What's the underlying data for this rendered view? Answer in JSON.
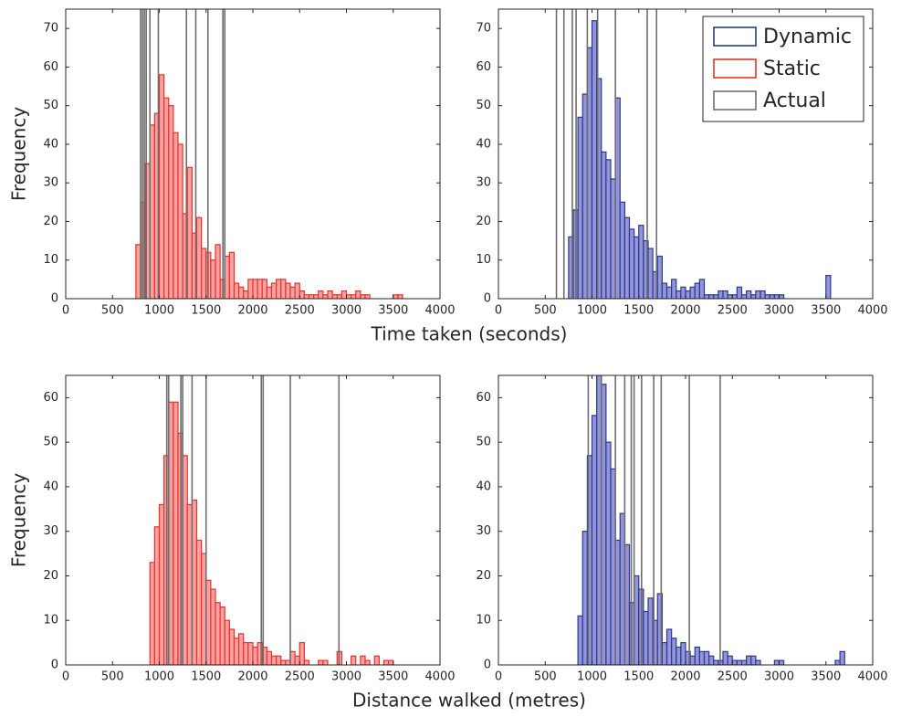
{
  "chart_data": [
    {
      "type": "histogram",
      "ylabel": "Frequency",
      "xlabel": "Time taken (seconds)",
      "xlim": [
        0,
        4000
      ],
      "xticks": [
        0,
        500,
        1000,
        1500,
        2000,
        2500,
        3000,
        3500,
        4000
      ],
      "ylim": [
        0,
        75
      ],
      "yticks": [
        0,
        10,
        20,
        30,
        40,
        50,
        60,
        70
      ],
      "bins": [
        750,
        800,
        850,
        900,
        950,
        1000,
        1050,
        1100,
        1150,
        1200,
        1250,
        1300,
        1350,
        1400,
        1450,
        1500,
        1550,
        1600,
        1650,
        1700,
        1750,
        1800,
        1850,
        1900,
        1950,
        2000,
        2050,
        2100,
        2150,
        2200,
        2250,
        2300,
        2350,
        2400,
        2450,
        2500,
        2550,
        2600,
        2650,
        2700,
        2750,
        2800,
        2850,
        2900,
        2950,
        3000,
        3050,
        3100,
        3150,
        3200,
        3250,
        3300,
        3350,
        3400,
        3450,
        3500,
        3550,
        3600
      ],
      "hist": {
        "color": "#e8322a",
        "fill": "#ff9b9b",
        "values": [
          14,
          25,
          35,
          45,
          48,
          58,
          52,
          50,
          43,
          40,
          22,
          34,
          17,
          21,
          13,
          12,
          10,
          14,
          5,
          11,
          12,
          4,
          3,
          2,
          5,
          5,
          5,
          5,
          3,
          4,
          5,
          5,
          4,
          3,
          4,
          2,
          1,
          1,
          1,
          2,
          1,
          2,
          1,
          1,
          2,
          1,
          1,
          2,
          1,
          1,
          0,
          0,
          0,
          0,
          0,
          1,
          1
        ]
      },
      "actual": {
        "color": "#6e6e6e",
        "values": [
          800,
          820,
          840,
          860,
          900,
          990,
          1290,
          1390,
          1520,
          1680,
          1700
        ]
      }
    },
    {
      "type": "histogram",
      "xlim": [
        0,
        4000
      ],
      "xticks": [
        0,
        500,
        1000,
        1500,
        2000,
        2500,
        3000,
        3500,
        4000
      ],
      "ylim": [
        0,
        75
      ],
      "yticks": [
        0,
        10,
        20,
        30,
        40,
        50,
        60,
        70
      ],
      "bins": [
        750,
        800,
        850,
        900,
        950,
        1000,
        1050,
        1100,
        1150,
        1200,
        1250,
        1300,
        1350,
        1400,
        1450,
        1500,
        1550,
        1600,
        1650,
        1700,
        1750,
        1800,
        1850,
        1900,
        1950,
        2000,
        2050,
        2100,
        2150,
        2200,
        2250,
        2300,
        2350,
        2400,
        2450,
        2500,
        2550,
        2600,
        2650,
        2700,
        2750,
        2800,
        2850,
        2900,
        2950,
        3000,
        3050,
        3100,
        3150,
        3200,
        3250,
        3300,
        3350,
        3400,
        3450,
        3500,
        3550,
        3600
      ],
      "hist": {
        "color": "#2b3a8f",
        "fill": "#8e8ed8",
        "values": [
          16,
          23,
          47,
          53,
          65,
          72,
          57,
          38,
          36,
          31,
          52,
          25,
          21,
          18,
          16,
          19,
          15,
          13,
          7,
          11,
          4,
          3,
          5,
          2,
          3,
          2,
          3,
          4,
          5,
          1,
          1,
          1,
          2,
          2,
          1,
          1,
          3,
          1,
          2,
          1,
          2,
          2,
          1,
          1,
          1,
          1,
          0,
          0,
          0,
          0,
          0,
          0,
          0,
          0,
          0,
          6,
          0
        ]
      },
      "actual": {
        "color": "#6e6e6e",
        "values": [
          620,
          700,
          790,
          830,
          950,
          1060,
          1250,
          1590,
          1690
        ]
      },
      "legend": {
        "position": "upper right",
        "entries": [
          {
            "name": "Dynamic",
            "color": "#2b3a8f"
          },
          {
            "name": "Static",
            "color": "#e8322a"
          },
          {
            "name": "Actual",
            "color": "#6e6e6e"
          }
        ]
      }
    },
    {
      "type": "histogram",
      "ylabel": "Frequency",
      "xlabel": "Distance walked (metres)",
      "xlim": [
        0,
        4000
      ],
      "xticks": [
        0,
        500,
        1000,
        1500,
        2000,
        2500,
        3000,
        3500,
        4000
      ],
      "ylim": [
        0,
        65
      ],
      "yticks": [
        0,
        10,
        20,
        30,
        40,
        50,
        60
      ],
      "bins": [
        900,
        950,
        1000,
        1050,
        1100,
        1150,
        1200,
        1250,
        1300,
        1350,
        1400,
        1450,
        1500,
        1550,
        1600,
        1650,
        1700,
        1750,
        1800,
        1850,
        1900,
        1950,
        2000,
        2050,
        2100,
        2150,
        2200,
        2250,
        2300,
        2350,
        2400,
        2450,
        2500,
        2550,
        2600,
        2650,
        2700,
        2750,
        2800,
        2850,
        2900,
        2950,
        3000,
        3050,
        3100,
        3150,
        3200,
        3250,
        3300,
        3350,
        3400,
        3450,
        3500
      ],
      "hist": {
        "color": "#e8322a",
        "fill": "#ff9b9b",
        "values": [
          23,
          31,
          36,
          47,
          59,
          59,
          52,
          47,
          36,
          37,
          28,
          25,
          19,
          17,
          14,
          13,
          10,
          8,
          6,
          7,
          5,
          5,
          4,
          5,
          4,
          3,
          2,
          2,
          1,
          1,
          3,
          2,
          5,
          1,
          0,
          0,
          1,
          1,
          0,
          0,
          3,
          0,
          0,
          2,
          0,
          2,
          1,
          0,
          2,
          0,
          1,
          1
        ]
      },
      "actual": {
        "color": "#6e6e6e",
        "values": [
          1080,
          1100,
          1230,
          1250,
          1350,
          1500,
          2090,
          2110,
          2400,
          2920
        ]
      }
    },
    {
      "type": "histogram",
      "xlim": [
        0,
        4000
      ],
      "xticks": [
        0,
        500,
        1000,
        1500,
        2000,
        2500,
        3000,
        3500,
        4000
      ],
      "ylim": [
        0,
        65
      ],
      "yticks": [
        0,
        10,
        20,
        30,
        40,
        50,
        60
      ],
      "bins": [
        850,
        900,
        950,
        1000,
        1050,
        1100,
        1150,
        1200,
        1250,
        1300,
        1350,
        1400,
        1450,
        1500,
        1550,
        1600,
        1650,
        1700,
        1750,
        1800,
        1850,
        1900,
        1950,
        2000,
        2050,
        2100,
        2150,
        2200,
        2250,
        2300,
        2350,
        2400,
        2450,
        2500,
        2550,
        2600,
        2650,
        2700,
        2750,
        2800,
        2850,
        2900,
        2950,
        3000,
        3050,
        3100,
        3150,
        3200,
        3250,
        3300,
        3350,
        3400,
        3450,
        3500,
        3550,
        3600,
        3650,
        3700
      ],
      "hist": {
        "color": "#2b3a8f",
        "fill": "#8e8ed8",
        "values": [
          11,
          30,
          47,
          56,
          65,
          63,
          50,
          44,
          28,
          34,
          27,
          14,
          20,
          17,
          12,
          15,
          10,
          16,
          5,
          8,
          6,
          4,
          5,
          3,
          2,
          4,
          3,
          3,
          2,
          1,
          1,
          3,
          2,
          1,
          1,
          1,
          2,
          2,
          1,
          0,
          0,
          0,
          1,
          1,
          0,
          0,
          0,
          0,
          0,
          0,
          0,
          0,
          0,
          0,
          0,
          1,
          3
        ]
      },
      "actual": {
        "color": "#6e6e6e",
        "values": [
          960,
          1100,
          1250,
          1350,
          1420,
          1450,
          1530,
          1660,
          1740,
          2040,
          2370
        ]
      }
    }
  ]
}
